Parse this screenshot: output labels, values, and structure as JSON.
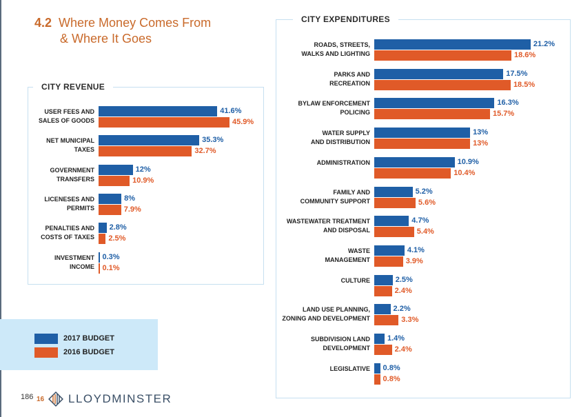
{
  "section": {
    "number": "4.2",
    "title_line1": "Where Money Comes From",
    "title_line2": "& Where It Goes"
  },
  "legend": [
    {
      "label": "2017 BUDGET",
      "color": "#1f5fa6"
    },
    {
      "label": "2016 BUDGET",
      "color": "#e05a28"
    }
  ],
  "footer": {
    "page_number": "186",
    "logo_number": "16",
    "logo_text": "LLOYDMINSTER"
  },
  "chart_data": [
    {
      "type": "bar",
      "orientation": "horizontal",
      "title": "CITY REVENUE",
      "categories": [
        "USER FEES AND\nSALES OF GOODS",
        "NET MUNICIPAL\nTAXES",
        "GOVERNMENT\nTRANSFERS",
        "LICENESES AND\nPERMITS",
        "PENALTIES AND\nCOSTS OF TAXES",
        "INVESTMENT\nINCOME"
      ],
      "series": [
        {
          "name": "2017 BUDGET",
          "values": [
            41.6,
            35.3,
            12,
            8,
            2.8,
            0.3
          ],
          "labels": [
            "41.6%",
            "35.3%",
            "12%",
            "8%",
            "2.8%",
            "0.3%"
          ],
          "color": "#1f5fa6"
        },
        {
          "name": "2016 BUDGET",
          "values": [
            45.9,
            32.7,
            10.9,
            7.9,
            2.5,
            0.1
          ],
          "labels": [
            "45.9%",
            "32.7%",
            "10.9%",
            "7.9%",
            "2.5%",
            "0.1%"
          ],
          "color": "#e05a28"
        }
      ],
      "xlim": [
        0,
        100
      ],
      "grid": false,
      "legend": "bottom-left"
    },
    {
      "type": "bar",
      "orientation": "horizontal",
      "title": "CITY EXPENDITURES",
      "categories": [
        "ROADS, STREETS,\nWALKS AND LIGHTING",
        "PARKS AND\nRECREATION",
        "BYLAW ENFORCEMENT\nPOLICING",
        "WATER SUPPLY\nAND DISTRIBUTION",
        "ADMINISTRATION",
        "FAMILY AND\nCOMMUNITY SUPPORT",
        "WASTEWATER TREATMENT\nAND DISPOSAL",
        "WASTE\nMANAGEMENT",
        "CULTURE",
        "LAND USE PLANNING,\nZONING AND DEVELOPMENT",
        "SUBDIVISION LAND\nDEVELOPMENT",
        "LEGISLATIVE"
      ],
      "series": [
        {
          "name": "2017 BUDGET",
          "values": [
            21.2,
            17.5,
            16.3,
            13,
            10.9,
            5.2,
            4.7,
            4.1,
            2.5,
            2.2,
            1.4,
            0.8
          ],
          "labels": [
            "21.2%",
            "17.5%",
            "16.3%",
            "13%",
            "10.9%",
            "5.2%",
            "4.7%",
            "4.1%",
            "2.5%",
            "2.2%",
            "1.4%",
            "0.8%"
          ],
          "color": "#1f5fa6"
        },
        {
          "name": "2016 BUDGET",
          "values": [
            18.6,
            18.5,
            15.7,
            13,
            10.4,
            5.6,
            5.4,
            3.9,
            2.4,
            3.3,
            2.4,
            0.8
          ],
          "labels": [
            "18.6%",
            "18.5%",
            "15.7%",
            "13%",
            "10.4%",
            "5.6%",
            "5.4%",
            "3.9%",
            "2.4%",
            "3.3%",
            "2.4%",
            "0.8%"
          ],
          "color": "#e05a28"
        }
      ],
      "xlim": [
        0,
        100
      ],
      "grid": false,
      "legend": "bottom-left"
    }
  ]
}
